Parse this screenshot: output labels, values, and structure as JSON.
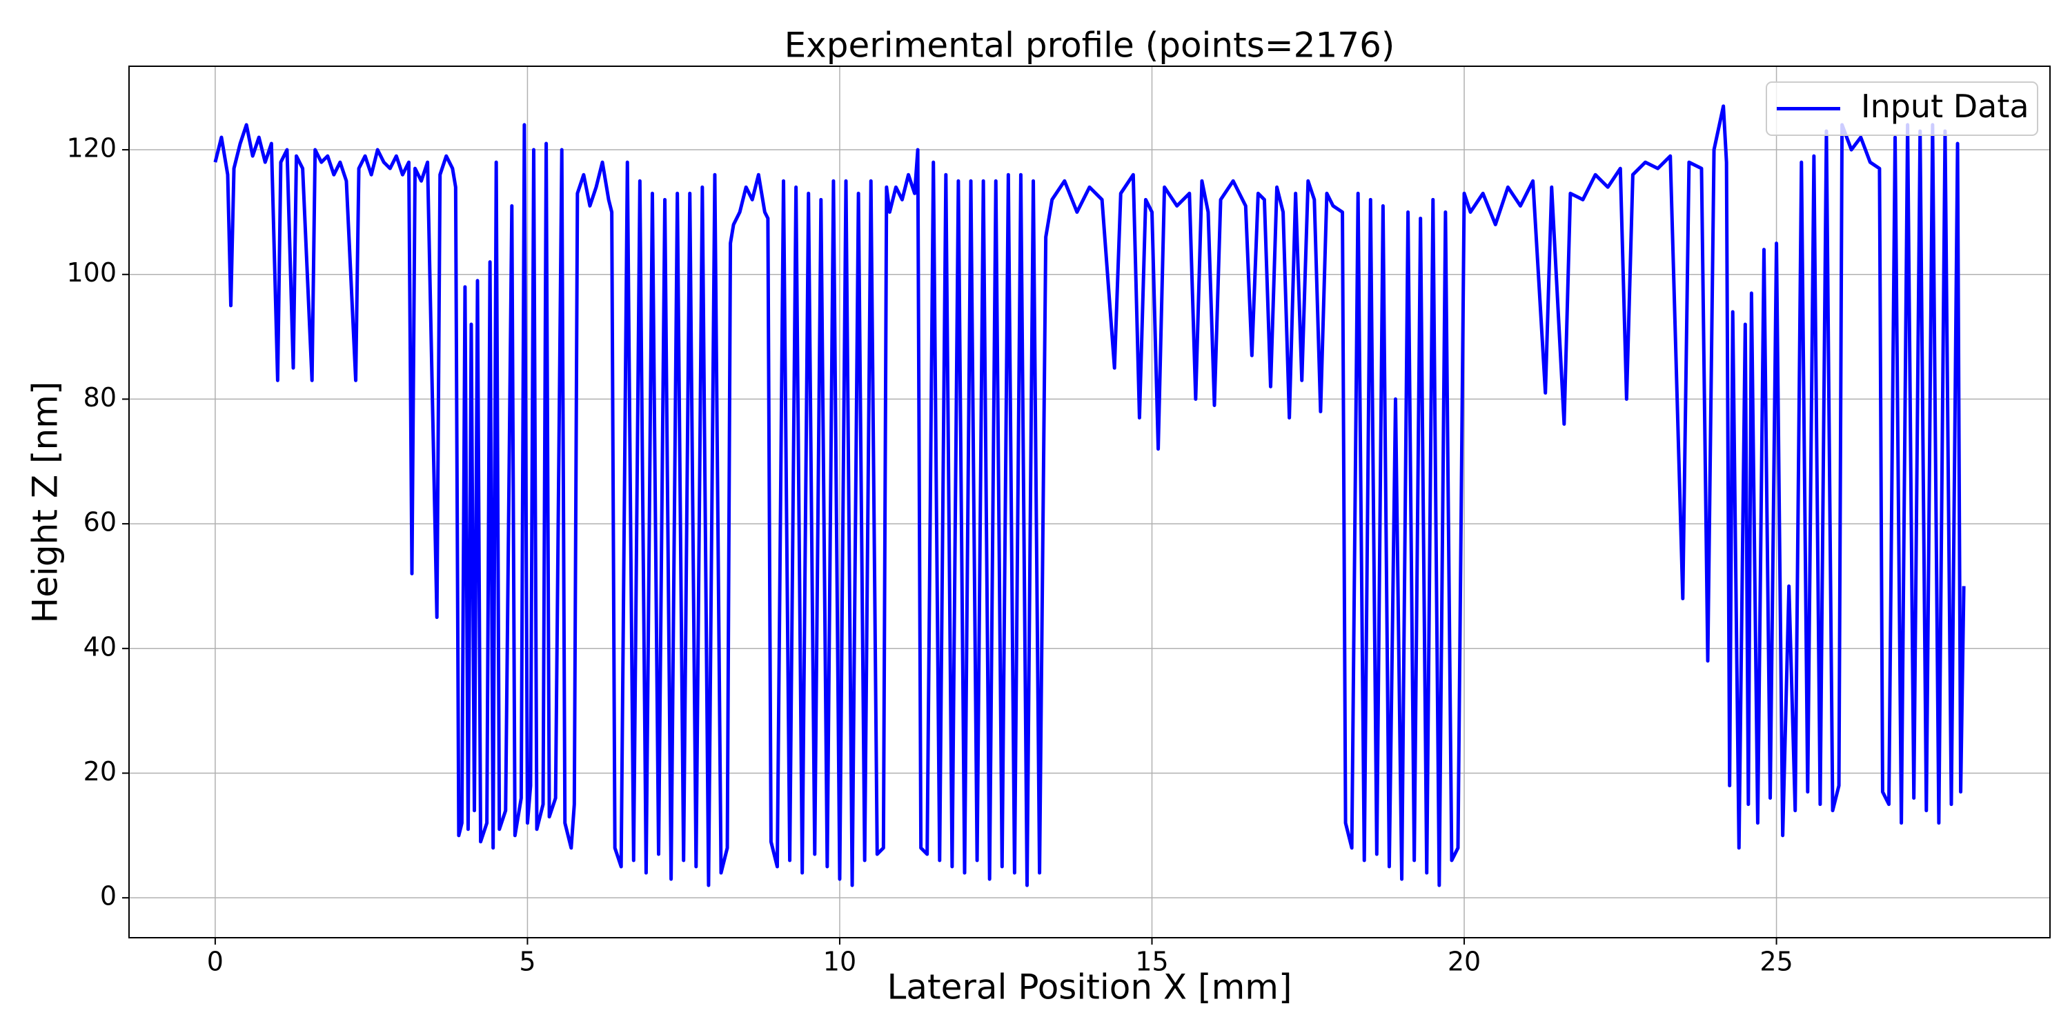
{
  "chart_data": {
    "type": "line",
    "title": "Experimental profile (points=2176)",
    "x_label": "Lateral Position X [mm]",
    "y_label": "Height Z [nm]",
    "xlim": [
      -1.38,
      29.38
    ],
    "ylim": [
      -6.4,
      133.4
    ],
    "xticks": [
      0,
      5,
      10,
      15,
      20,
      25
    ],
    "yticks": [
      0,
      20,
      40,
      60,
      80,
      100,
      120
    ],
    "grid": true,
    "legend": "upper right",
    "x": [
      0,
      0.1,
      0.2,
      0.25,
      0.3,
      0.4,
      0.5,
      0.6,
      0.7,
      0.8,
      0.9,
      1.0,
      1.05,
      1.15,
      1.25,
      1.3,
      1.4,
      1.55,
      1.6,
      1.7,
      1.8,
      1.9,
      2.0,
      2.1,
      2.25,
      2.3,
      2.4,
      2.5,
      2.6,
      2.7,
      2.8,
      2.9,
      3.0,
      3.1,
      3.15,
      3.2,
      3.3,
      3.4,
      3.55,
      3.6,
      3.7,
      3.8,
      3.85,
      3.9,
      3.95,
      4.0,
      4.05,
      4.1,
      4.15,
      4.2,
      4.25,
      4.35,
      4.4,
      4.45,
      4.5,
      4.55,
      4.65,
      4.75,
      4.8,
      4.9,
      4.95,
      5.0,
      5.05,
      5.1,
      5.15,
      5.25,
      5.3,
      5.35,
      5.45,
      5.55,
      5.6,
      5.7,
      5.75,
      5.8,
      5.9,
      6.0,
      6.1,
      6.2,
      6.3,
      6.35,
      6.4,
      6.5,
      6.6,
      6.7,
      6.8,
      6.9,
      7.0,
      7.1,
      7.2,
      7.3,
      7.4,
      7.5,
      7.6,
      7.7,
      7.8,
      7.9,
      8.0,
      8.1,
      8.2,
      8.25,
      8.3,
      8.4,
      8.5,
      8.6,
      8.7,
      8.8,
      8.85,
      8.9,
      9.0,
      9.1,
      9.2,
      9.3,
      9.4,
      9.5,
      9.6,
      9.7,
      9.8,
      9.9,
      10.0,
      10.1,
      10.2,
      10.3,
      10.4,
      10.5,
      10.6,
      10.7,
      10.75,
      10.8,
      10.9,
      11.0,
      11.1,
      11.2,
      11.25,
      11.3,
      11.4,
      11.5,
      11.6,
      11.7,
      11.8,
      11.9,
      12.0,
      12.1,
      12.2,
      12.3,
      12.4,
      12.5,
      12.6,
      12.7,
      12.8,
      12.9,
      13.0,
      13.1,
      13.2,
      13.3,
      13.4,
      13.6,
      13.8,
      14.0,
      14.2,
      14.4,
      14.5,
      14.7,
      14.8,
      14.9,
      15.0,
      15.1,
      15.2,
      15.4,
      15.6,
      15.7,
      15.8,
      15.9,
      16.0,
      16.1,
      16.3,
      16.5,
      16.6,
      16.7,
      16.8,
      16.9,
      17.0,
      17.1,
      17.2,
      17.3,
      17.4,
      17.5,
      17.6,
      17.7,
      17.8,
      17.9,
      18.05,
      18.1,
      18.2,
      18.3,
      18.4,
      18.5,
      18.6,
      18.7,
      18.8,
      18.9,
      19.0,
      19.1,
      19.2,
      19.3,
      19.4,
      19.5,
      19.6,
      19.7,
      19.8,
      19.9,
      20.0,
      20.1,
      20.3,
      20.5,
      20.7,
      20.9,
      21.1,
      21.3,
      21.4,
      21.6,
      21.7,
      21.9,
      22.1,
      22.3,
      22.5,
      22.6,
      22.7,
      22.9,
      23.1,
      23.3,
      23.5,
      23.6,
      23.8,
      23.9,
      24.0,
      24.15,
      24.2,
      24.25,
      24.3,
      24.4,
      24.5,
      24.55,
      24.6,
      24.7,
      24.8,
      24.9,
      25.0,
      25.1,
      25.2,
      25.3,
      25.4,
      25.5,
      25.6,
      25.7,
      25.8,
      25.9,
      26.0,
      26.05,
      26.2,
      26.35,
      26.5,
      26.65,
      26.7,
      26.8,
      26.9,
      27.0,
      27.1,
      27.2,
      27.3,
      27.4,
      27.5,
      27.6,
      27.7,
      27.8,
      27.9,
      27.95,
      28.0
    ],
    "series": [
      {
        "name": "Input Data",
        "color": "#0000ff",
        "values": [
          118,
          122,
          116,
          95,
          117,
          121,
          124,
          119,
          122,
          118,
          121,
          83,
          118,
          120,
          85,
          119,
          117,
          83,
          120,
          118,
          119,
          116,
          118,
          115,
          83,
          117,
          119,
          116,
          120,
          118,
          117,
          119,
          116,
          118,
          52,
          117,
          115,
          118,
          45,
          116,
          119,
          117,
          114,
          10,
          12,
          98,
          11,
          92,
          14,
          99,
          9,
          12,
          102,
          8,
          118,
          11,
          14,
          111,
          10,
          16,
          124,
          12,
          18,
          120,
          11,
          15,
          121,
          13,
          16,
          120,
          12,
          8,
          15,
          113,
          116,
          111,
          114,
          118,
          112,
          110,
          8,
          5,
          118,
          6,
          115,
          4,
          113,
          7,
          112,
          3,
          113,
          6,
          113,
          5,
          114,
          2,
          116,
          4,
          8,
          105,
          108,
          110,
          114,
          112,
          116,
          110,
          109,
          9,
          5,
          115,
          6,
          114,
          4,
          113,
          7,
          112,
          5,
          115,
          3,
          115,
          2,
          113,
          6,
          115,
          7,
          8,
          114,
          110,
          114,
          112,
          116,
          113,
          120,
          8,
          7,
          118,
          6,
          116,
          5,
          115,
          4,
          115,
          6,
          115,
          3,
          115,
          5,
          116,
          4,
          116,
          2,
          115,
          4,
          106,
          112,
          115,
          110,
          114,
          112,
          85,
          113,
          116,
          77,
          112,
          110,
          72,
          114,
          111,
          113,
          80,
          115,
          110,
          79,
          112,
          115,
          111,
          87,
          113,
          112,
          82,
          114,
          110,
          77,
          113,
          83,
          115,
          112,
          78,
          113,
          111,
          110,
          12,
          8,
          113,
          6,
          112,
          7,
          111,
          5,
          80,
          3,
          110,
          6,
          109,
          4,
          112,
          2,
          110,
          6,
          8,
          113,
          110,
          113,
          108,
          114,
          111,
          115,
          81,
          114,
          76,
          113,
          112,
          116,
          114,
          117,
          80,
          116,
          118,
          117,
          119,
          48,
          118,
          117,
          38,
          120,
          127,
          118,
          18,
          94,
          8,
          92,
          15,
          97,
          12,
          104,
          16,
          105,
          10,
          50,
          14,
          118,
          17,
          119,
          15,
          123,
          14,
          18,
          124,
          120,
          122,
          118,
          117,
          17,
          15,
          122,
          12,
          124,
          16,
          123,
          14,
          124,
          12,
          123,
          15,
          121,
          17,
          50
        ]
      }
    ]
  }
}
